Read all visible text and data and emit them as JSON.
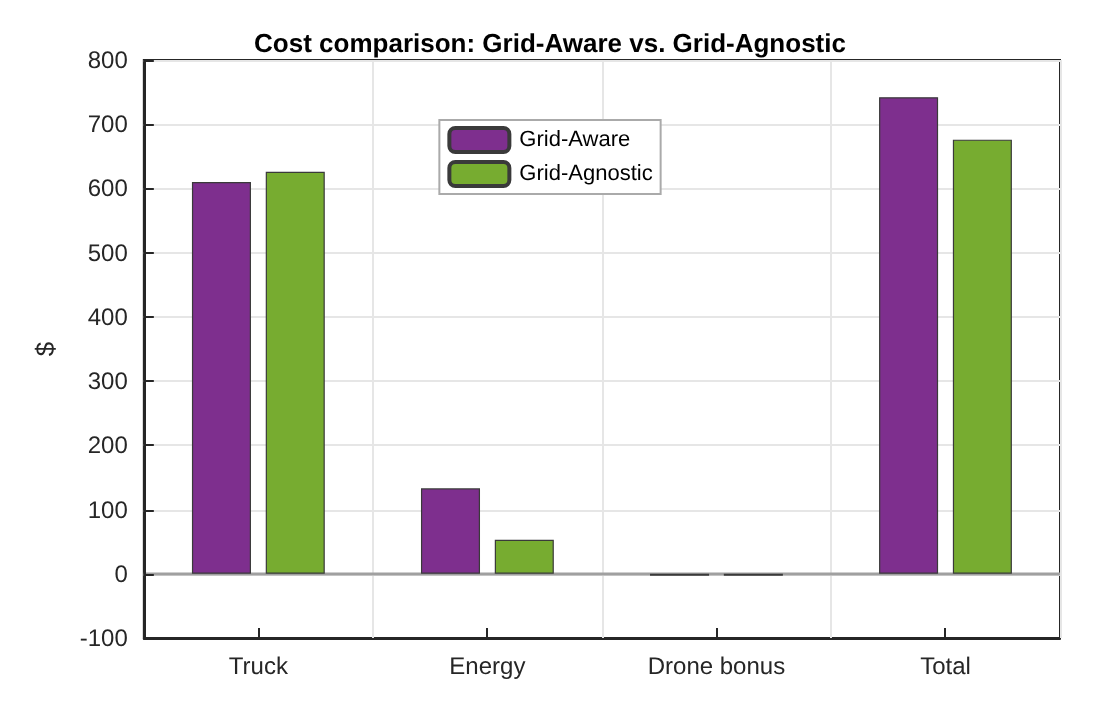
{
  "chart_data": {
    "type": "bar",
    "title": "Cost comparison: Grid-Aware vs. Grid-Agnostic",
    "ylabel": "$",
    "categories": [
      "Truck",
      "Energy",
      "Drone bonus",
      "Total"
    ],
    "series": [
      {
        "name": "Grid-Aware",
        "color": "#7e2f8e",
        "values": [
          610,
          133,
          -3,
          742
        ]
      },
      {
        "name": "Grid-Agnostic",
        "color": "#77ac30",
        "values": [
          626,
          53,
          -3,
          676
        ]
      }
    ],
    "ylim": [
      -100,
      800
    ],
    "yticks": [
      -100,
      0,
      100,
      200,
      300,
      400,
      500,
      600,
      700,
      800
    ],
    "grid": true,
    "legend": "top"
  }
}
